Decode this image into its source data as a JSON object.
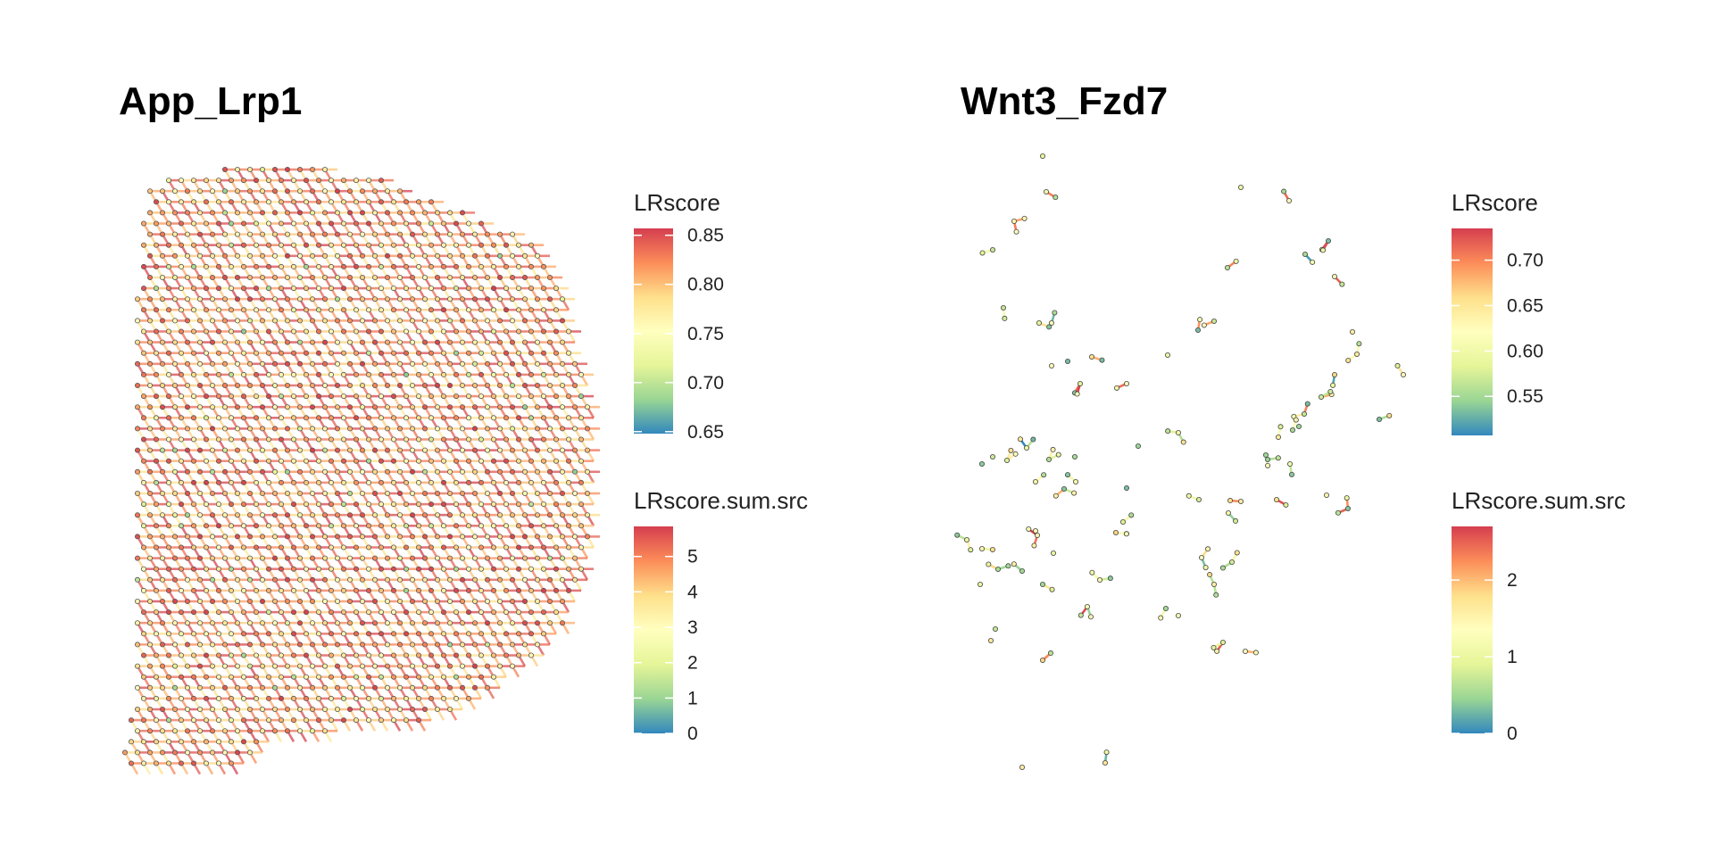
{
  "chart_data": [
    {
      "type": "scatter",
      "title": "App_Lrp1",
      "description_note": "",
      "colormap": [
        "#3288bd",
        "#99d594",
        "#e6f598",
        "#ffffbf",
        "#fee08b",
        "#fc8d59",
        "#d53e4f"
      ],
      "spot_layer": {
        "pattern": "dense hexagonal spot grid with ligand-receptor edges",
        "typical_LRscore": 0.81,
        "typical_LRscore_sum_src": 4.2
      },
      "legends": [
        {
          "title": "LRscore",
          "ticks": [
            "0.65",
            "0.70",
            "0.75",
            "0.80",
            "0.85"
          ],
          "tick_values": [
            0.65,
            0.7,
            0.75,
            0.8,
            0.85
          ],
          "range": [
            0.648,
            0.857
          ]
        },
        {
          "title": "LRscore.sum.src",
          "ticks": [
            "0",
            "1",
            "2",
            "3",
            "4",
            "5"
          ],
          "tick_values": [
            0,
            1,
            2,
            3,
            4,
            5
          ],
          "range": [
            0,
            5.85
          ]
        }
      ]
    },
    {
      "type": "scatter",
      "title": "Wnt3_Fzd7",
      "colormap": [
        "#3288bd",
        "#99d594",
        "#e6f598",
        "#ffffbf",
        "#fee08b",
        "#fc8d59",
        "#d53e4f"
      ],
      "spot_layer": {
        "pattern": "sparse scattered spot clusters with short edges",
        "typical_LRscore": 0.6,
        "typical_LRscore_sum_src": 1.0
      },
      "legends": [
        {
          "title": "LRscore",
          "ticks": [
            "0.55",
            "0.60",
            "0.65",
            "0.70"
          ],
          "tick_values": [
            0.55,
            0.6,
            0.65,
            0.7
          ],
          "range": [
            0.507,
            0.735
          ]
        },
        {
          "title": "LRscore.sum.src",
          "ticks": [
            "0",
            "1",
            "2"
          ],
          "tick_values": [
            0,
            1,
            2
          ],
          "range": [
            0,
            2.7
          ]
        }
      ]
    }
  ]
}
